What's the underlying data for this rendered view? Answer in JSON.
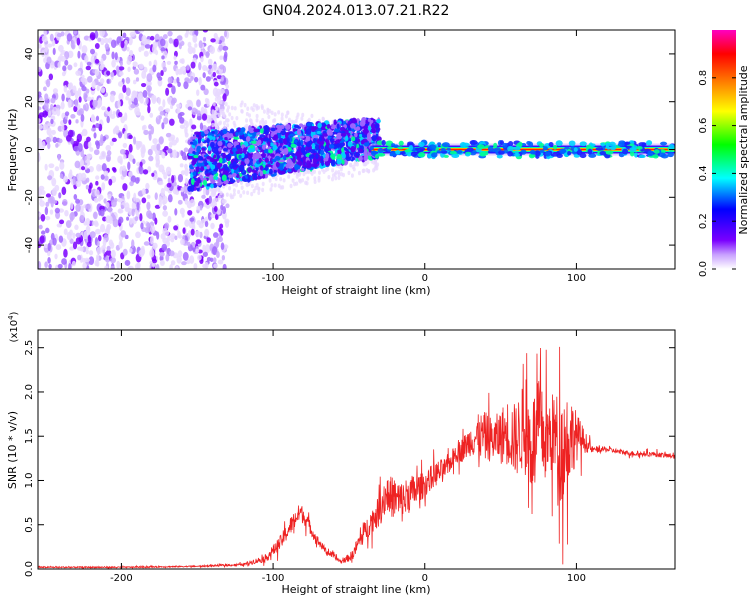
{
  "title": "GN04.2024.013.07.21.R22",
  "chart_data": [
    {
      "type": "heatmap",
      "xlabel": "Height of straight line (km)",
      "ylabel": "Frequency (Hz)",
      "xlim": [
        -255,
        165
      ],
      "ylim": [
        -50,
        50
      ],
      "xticks": [
        -200,
        -100,
        0,
        100
      ],
      "yticks": [
        -40,
        -20,
        0,
        20,
        40
      ],
      "colorbar": {
        "label": "Normalized spectral amplitude",
        "range": [
          0,
          1
        ],
        "ticks": [
          0.0,
          0.2,
          0.4,
          0.6,
          0.8
        ],
        "tick_labels": [
          "0.0",
          "0.2",
          "0.4",
          "0.6",
          "0.8"
        ],
        "colors": [
          "#ffffff",
          "#7a00ff",
          "#0000ff",
          "#00ffff",
          "#00ff00",
          "#ffff00",
          "#ff8000",
          "#ff0000",
          "#ff00c0"
        ]
      },
      "regions": [
        {
          "x": [
            -255,
            -130
          ],
          "freq_spread": 50,
          "amplitude": 0.15
        },
        {
          "x": [
            -155,
            -30
          ],
          "freq_center": [
            -8,
            5
          ],
          "freq_spread": 12,
          "amplitude": 0.35
        },
        {
          "x": [
            -30,
            165
          ],
          "freq_center": 0,
          "freq_spread": 2,
          "amplitude": 0.9
        }
      ]
    },
    {
      "type": "line",
      "xlabel": "Height of straight line (km)",
      "ylabel": "SNR (10 * v/v)",
      "y_multiplier": "(x10",
      "y_multiplier_exp": "4",
      "y_multiplier_close": ")",
      "xlim": [
        -255,
        165
      ],
      "ylim": [
        0,
        2.7
      ],
      "xticks": [
        -200,
        -100,
        0,
        100
      ],
      "yticks": [
        0.0,
        0.5,
        1.0,
        1.5,
        2.0,
        2.5
      ],
      "ytick_labels": [
        "0.0",
        "0.5",
        "1.0",
        "1.5",
        "2.0",
        "2.5"
      ],
      "color": "#ee2222",
      "series": [
        {
          "x": [
            -255,
            -200,
            -150,
            -120,
            -105,
            -95,
            -88,
            -82,
            -78,
            -72,
            -65,
            -55,
            -48,
            -42,
            -35,
            -30,
            -25,
            -20,
            -15,
            -10,
            -5,
            0,
            5,
            10,
            15,
            20,
            25,
            30,
            35,
            40,
            45,
            50,
            55,
            60,
            65,
            70,
            75,
            80,
            85,
            90,
            95,
            100,
            105,
            110,
            120,
            130,
            140,
            150,
            160,
            165
          ],
          "y": [
            0.02,
            0.02,
            0.03,
            0.05,
            0.12,
            0.3,
            0.5,
            0.65,
            0.55,
            0.35,
            0.2,
            0.08,
            0.15,
            0.35,
            0.55,
            0.65,
            0.85,
            0.8,
            0.75,
            0.85,
            0.9,
            0.95,
            1.05,
            1.1,
            1.15,
            1.3,
            1.35,
            1.45,
            1.5,
            1.5,
            1.45,
            1.5,
            1.55,
            1.45,
            1.6,
            1.4,
            1.6,
            1.45,
            1.55,
            1.35,
            1.5,
            1.5,
            1.45,
            1.35,
            1.35,
            1.32,
            1.3,
            1.3,
            1.28,
            1.28
          ],
          "noise": [
            0.01,
            0.01,
            0.01,
            0.02,
            0.06,
            0.12,
            0.15,
            0.15,
            0.12,
            0.08,
            0.05,
            0.03,
            0.08,
            0.15,
            0.2,
            0.25,
            0.3,
            0.35,
            0.35,
            0.3,
            0.25,
            0.2,
            0.2,
            0.2,
            0.15,
            0.15,
            0.2,
            0.25,
            0.35,
            0.4,
            0.35,
            0.45,
            0.55,
            0.6,
            0.7,
            0.8,
            0.75,
            0.7,
            0.65,
            0.9,
            0.8,
            0.4,
            0.2,
            0.05,
            0.04,
            0.04,
            0.04,
            0.04,
            0.04,
            0.04
          ]
        }
      ]
    }
  ]
}
